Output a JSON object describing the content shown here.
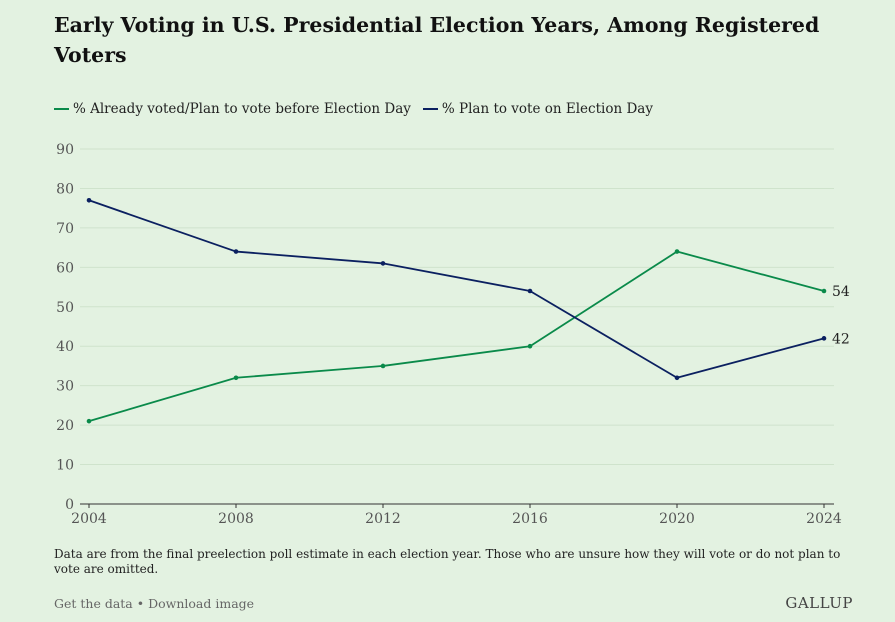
{
  "title": "Early Voting in U.S. Presidential Election Years, Among Registered Voters",
  "note": "Data are from the final preelection poll estimate in each election year. Those who are unsure how they will vote or do not plan to vote are omitted.",
  "footer": {
    "get_data": "Get the data",
    "separator": " • ",
    "download": "Download image"
  },
  "brand": "GALLUP",
  "colors": {
    "background": "#e3f2e1",
    "early": "#0a8a4a",
    "election_day": "#0b2060",
    "grid": "#cfe3cc"
  },
  "chart_data": {
    "type": "line",
    "title": "Early Voting in U.S. Presidential Election Years, Among Registered Voters",
    "x": [
      2004,
      2008,
      2012,
      2016,
      2020,
      2024
    ],
    "xlabel": "",
    "ylabel": "",
    "ylim": [
      0,
      90
    ],
    "yticks": [
      0,
      10,
      20,
      30,
      40,
      50,
      60,
      70,
      80,
      90
    ],
    "grid": true,
    "legend_position": "top-left",
    "series": [
      {
        "name": "% Already voted/Plan to vote before Election Day",
        "values": [
          21,
          32,
          35,
          40,
          64,
          54
        ],
        "color": "#0a8a4a",
        "end_label": "54"
      },
      {
        "name": "% Plan to vote on Election Day",
        "values": [
          77,
          64,
          61,
          54,
          32,
          42
        ],
        "color": "#0b2060",
        "end_label": "42"
      }
    ]
  }
}
